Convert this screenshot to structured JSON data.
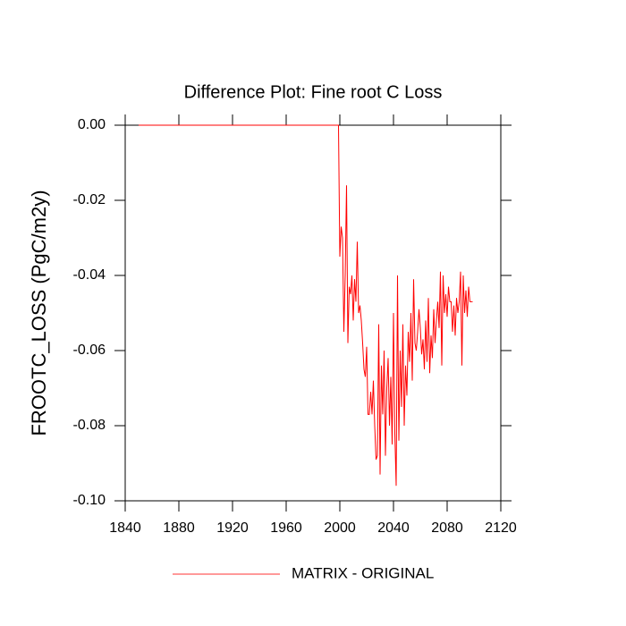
{
  "chart_data": {
    "type": "line",
    "title": "Difference Plot: Fine root C Loss",
    "y_label": "FROOTC_LOSS  (PgC/m2y)",
    "x": [
      1850,
      1999,
      2000,
      2001,
      2002,
      2003,
      2004,
      2005,
      2006,
      2007,
      2008,
      2009,
      2010,
      2011,
      2012,
      2013,
      2014,
      2015,
      2016,
      2017,
      2018,
      2019,
      2020,
      2021,
      2022,
      2023,
      2024,
      2025,
      2026,
      2027,
      2028,
      2029,
      2030,
      2031,
      2032,
      2033,
      2034,
      2035,
      2036,
      2037,
      2038,
      2039,
      2040,
      2041,
      2042,
      2043,
      2044,
      2045,
      2046,
      2047,
      2048,
      2049,
      2050,
      2051,
      2052,
      2053,
      2054,
      2055,
      2056,
      2057,
      2058,
      2059,
      2060,
      2061,
      2062,
      2063,
      2064,
      2065,
      2066,
      2067,
      2068,
      2069,
      2070,
      2071,
      2072,
      2073,
      2074,
      2075,
      2076,
      2077,
      2078,
      2079,
      2080,
      2081,
      2082,
      2083,
      2084,
      2085,
      2086,
      2087,
      2088,
      2089,
      2090,
      2091,
      2092,
      2093,
      2094,
      2095,
      2096,
      2097,
      2098,
      2099
    ],
    "series": [
      {
        "name": "MATRIX - ORIGINAL",
        "color": "#ff0000",
        "values": [
          0,
          0,
          -0.035,
          -0.027,
          -0.03,
          -0.055,
          -0.04,
          -0.016,
          -0.058,
          -0.043,
          -0.045,
          -0.04,
          -0.052,
          -0.041,
          -0.047,
          -0.031,
          -0.05,
          -0.048,
          -0.052,
          -0.058,
          -0.065,
          -0.067,
          -0.059,
          -0.077,
          -0.077,
          -0.071,
          -0.077,
          -0.068,
          -0.08,
          -0.089,
          -0.088,
          -0.053,
          -0.093,
          -0.064,
          -0.077,
          -0.06,
          -0.088,
          -0.07,
          -0.062,
          -0.08,
          -0.067,
          -0.085,
          -0.05,
          -0.082,
          -0.096,
          -0.04,
          -0.084,
          -0.06,
          -0.075,
          -0.053,
          -0.08,
          -0.064,
          -0.072,
          -0.055,
          -0.063,
          -0.05,
          -0.068,
          -0.041,
          -0.058,
          -0.06,
          -0.055,
          -0.049,
          -0.054,
          -0.061,
          -0.057,
          -0.065,
          -0.052,
          -0.063,
          -0.046,
          -0.066,
          -0.056,
          -0.062,
          -0.049,
          -0.058,
          -0.052,
          -0.047,
          -0.054,
          -0.039,
          -0.064,
          -0.04,
          -0.05,
          -0.045,
          -0.051,
          -0.043,
          -0.047,
          -0.047,
          -0.055,
          -0.048,
          -0.056,
          -0.046,
          -0.05,
          -0.047,
          -0.039,
          -0.064,
          -0.04,
          -0.05,
          -0.044,
          -0.051,
          -0.043,
          -0.047,
          -0.047,
          -0.047
        ]
      }
    ],
    "xlim": [
      1840,
      2120
    ],
    "xticks": [
      1840,
      1880,
      1920,
      1960,
      2000,
      2040,
      2080,
      2120
    ],
    "ylim": [
      -0.1,
      0
    ],
    "yticks": [
      {
        "value": -0.1,
        "label": "-0.10"
      },
      {
        "value": -0.08,
        "label": "-0.08"
      },
      {
        "value": -0.06,
        "label": "-0.06"
      },
      {
        "value": -0.04,
        "label": "-0.04"
      },
      {
        "value": -0.02,
        "label": "-0.02"
      },
      {
        "value": 0,
        "label": "0.00"
      }
    ],
    "legend": "bottom"
  }
}
